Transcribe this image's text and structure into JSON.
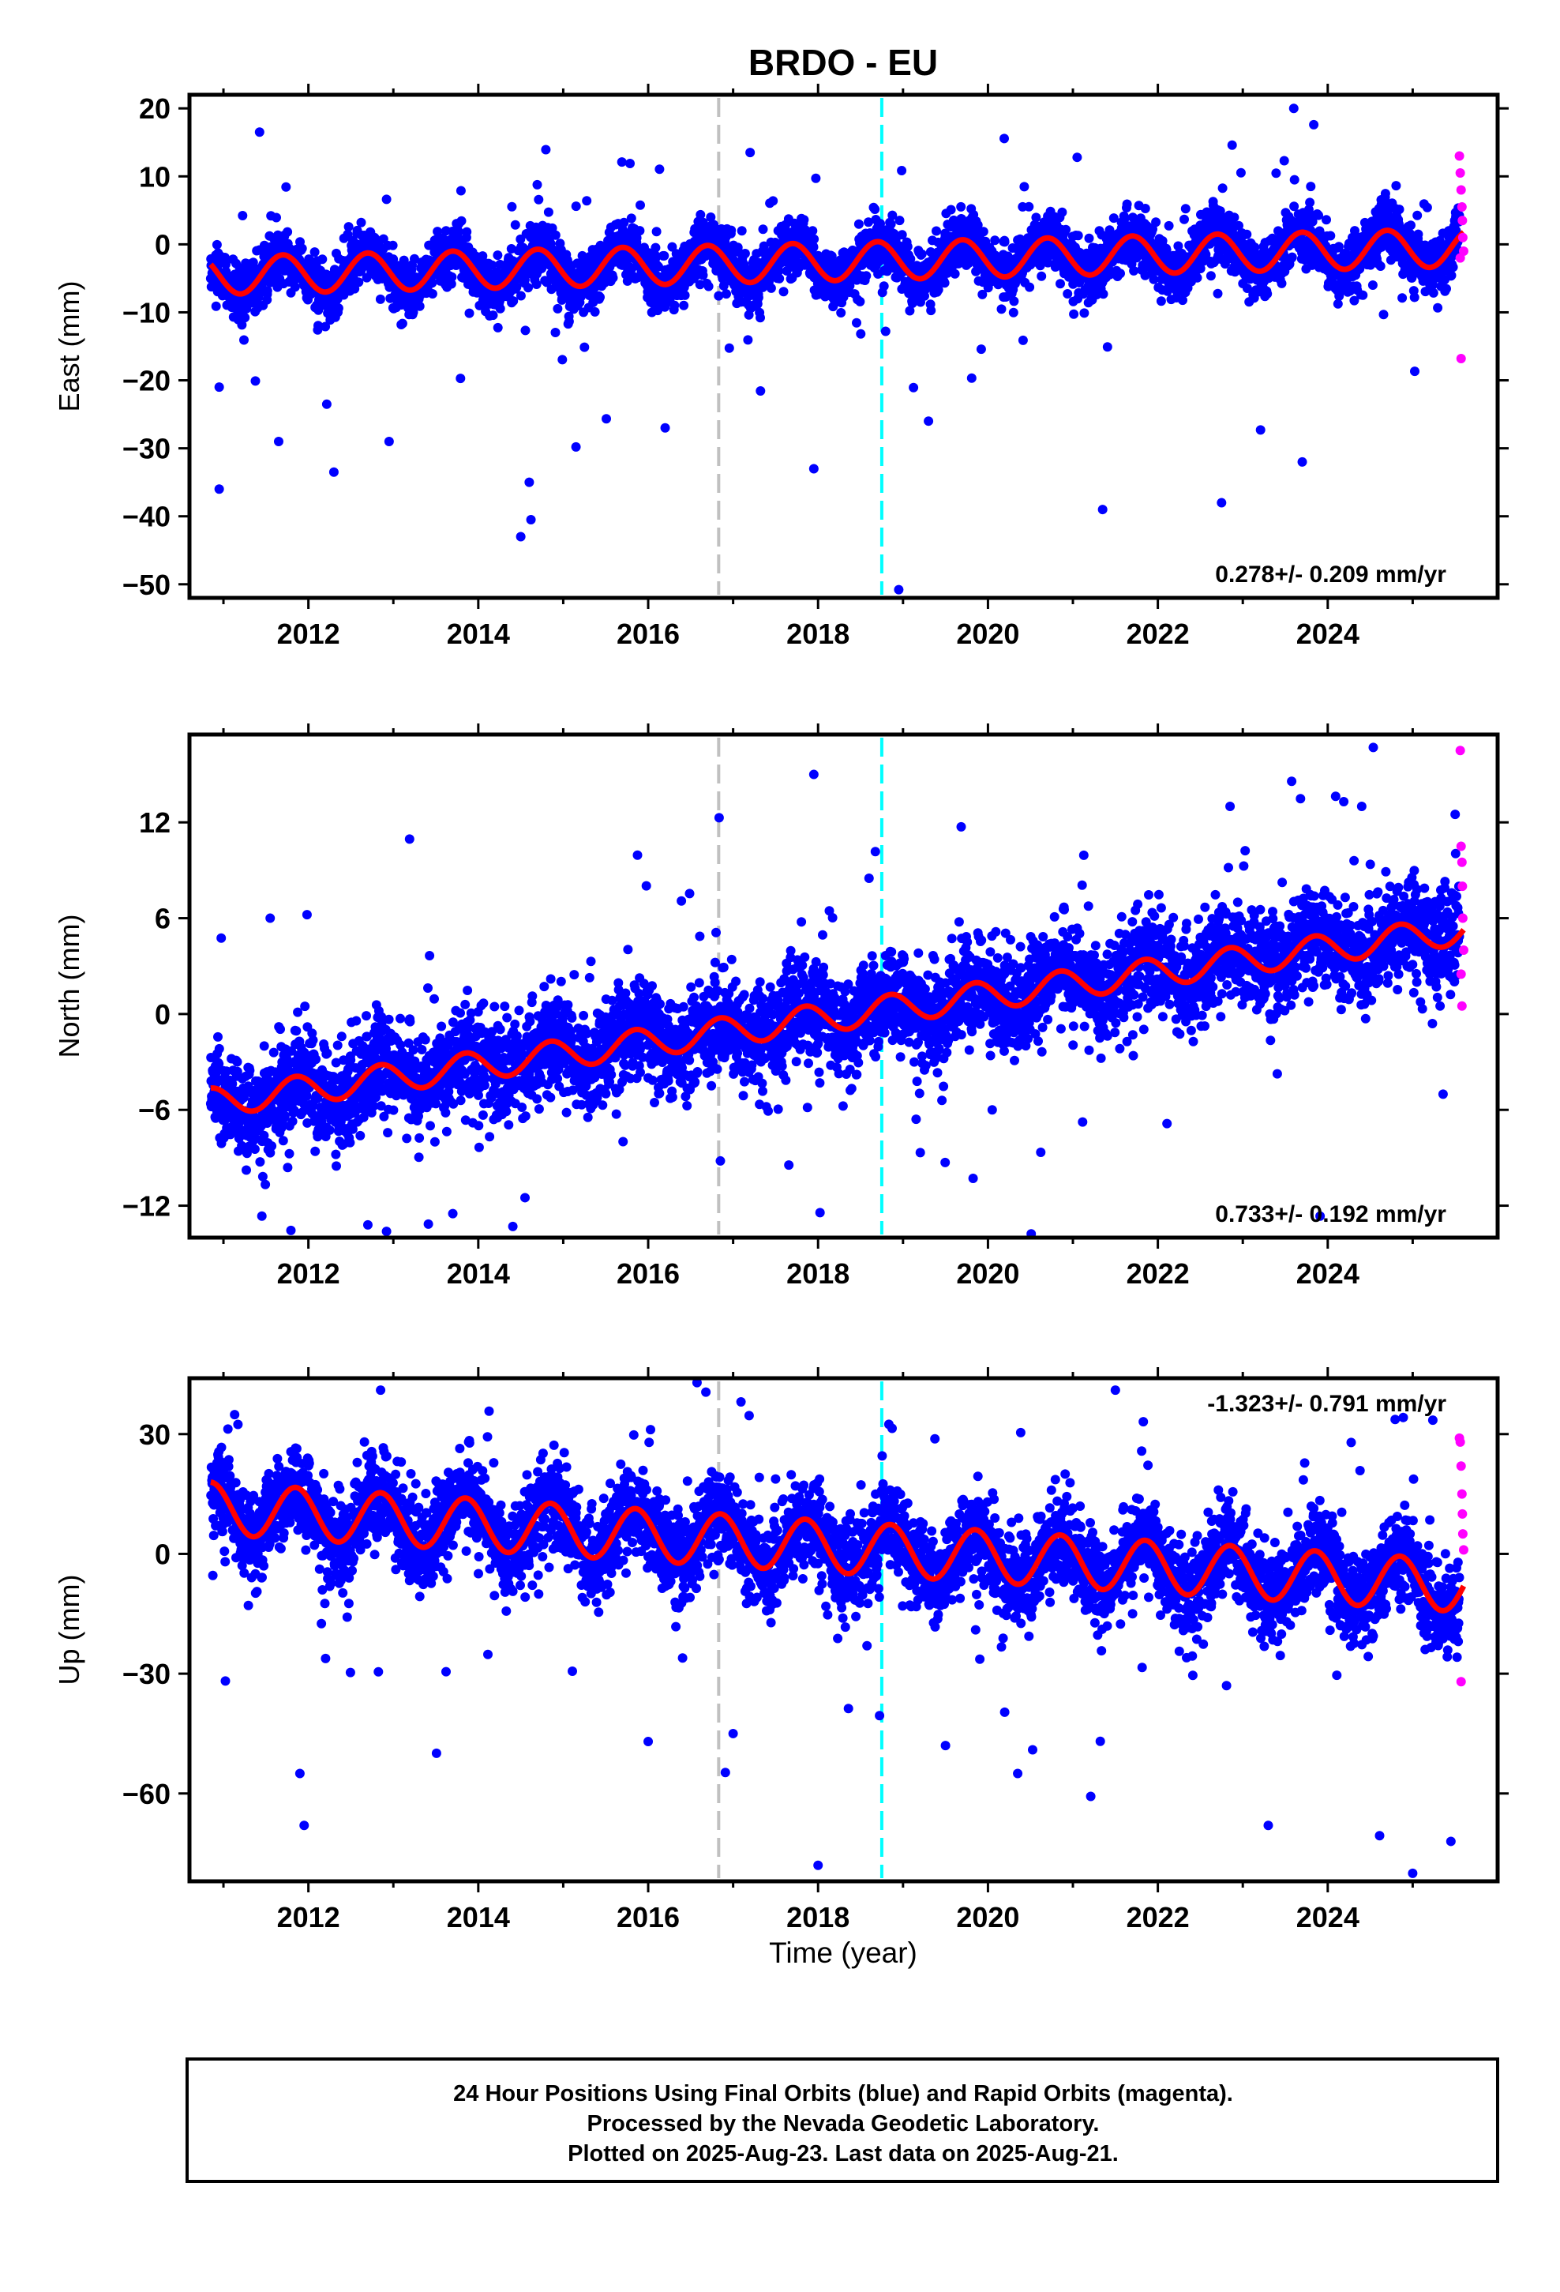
{
  "title": "BRDO - EU",
  "xlabel": "Time (year)",
  "footer_lines": [
    "24 Hour Positions Using Final Orbits (blue) and Rapid Orbits (magenta).",
    "Processed by the Nevada Geodetic Laboratory.",
    "Plotted on 2025-Aug-23. Last data on 2025-Aug-21."
  ],
  "colors": {
    "final_orbits": "#0000ff",
    "rapid_orbits": "#ff00ff",
    "model_fit": "#ff0000",
    "event_line_gray": "#c0c0c0",
    "event_line_cyan": "#00ffff"
  },
  "chart_data": [
    {
      "type": "scatter",
      "ylabel": "East (mm)",
      "xlim": [
        2010.6,
        2026.0
      ],
      "ylim": [
        -52,
        22
      ],
      "yticks": [
        20,
        10,
        0,
        -10,
        -20,
        -30,
        -40,
        -50
      ],
      "xticks": [
        2012,
        2014,
        2016,
        2018,
        2020,
        2022,
        2024
      ],
      "rate_text": "0.278+/- 0.209 mm/yr",
      "rate_position": "bottom-right",
      "vlines": [
        2016.83,
        2018.75
      ],
      "model": {
        "offset": -2.6,
        "trend": 0.278,
        "amplitude": 2.8,
        "phase": 0.45
      },
      "scatter_sd": 2.0,
      "outliers": [
        [
          2010.95,
          -36
        ],
        [
          2010.95,
          -21
        ],
        [
          2011.65,
          -29
        ],
        [
          2012.3,
          -33.5
        ],
        [
          2012.95,
          -29
        ],
        [
          2014.5,
          -43
        ],
        [
          2014.6,
          -35
        ],
        [
          2014.62,
          -40.5
        ],
        [
          2015.15,
          -29.8
        ],
        [
          2017.2,
          13.5
        ],
        [
          2017.95,
          -33
        ],
        [
          2018.95,
          -50.8
        ],
        [
          2021.05,
          12.8
        ],
        [
          2021.35,
          -39
        ],
        [
          2022.75,
          -38
        ],
        [
          2023.6,
          20
        ],
        [
          2023.7,
          -32
        ],
        [
          2016.2,
          -27
        ],
        [
          2019.3,
          -26
        ]
      ],
      "rapid": [
        [
          2025.55,
          13
        ],
        [
          2025.56,
          10.5
        ],
        [
          2025.57,
          8
        ],
        [
          2025.58,
          5.5
        ],
        [
          2025.585,
          3.5
        ],
        [
          2025.59,
          1
        ],
        [
          2025.6,
          -1
        ],
        [
          2025.56,
          -2
        ],
        [
          2025.57,
          -16.8
        ]
      ]
    },
    {
      "type": "scatter",
      "ylabel": "North (mm)",
      "xlim": [
        2010.6,
        2026.0
      ],
      "ylim": [
        -14,
        17.5
      ],
      "yticks": [
        12,
        6,
        0,
        -6,
        -12
      ],
      "xticks": [
        2012,
        2014,
        2016,
        2018,
        2020,
        2022,
        2024
      ],
      "rate_text": "0.733+/- 0.192 mm/yr",
      "rate_position": "bottom-right",
      "vlines": [
        2016.83,
        2018.75
      ],
      "model": {
        "offset": -0.3,
        "trend": 0.733,
        "amplitude": 0.9,
        "phase": 0.6
      },
      "scatter_sd": 1.5,
      "outliers": [
        [
          2011.55,
          6
        ],
        [
          2012.7,
          -13.2
        ],
        [
          2013.7,
          -12.5
        ],
        [
          2014.55,
          -11.5
        ],
        [
          2016.85,
          -9.2
        ],
        [
          2017.95,
          15
        ],
        [
          2018.6,
          8.5
        ],
        [
          2022.85,
          13
        ],
        [
          2024.4,
          13
        ],
        [
          2025.5,
          12.5
        ],
        [
          2020.05,
          -6
        ]
      ],
      "rapid": [
        [
          2025.56,
          16.5
        ],
        [
          2025.57,
          10.5
        ],
        [
          2025.58,
          9.5
        ],
        [
          2025.585,
          8
        ],
        [
          2025.59,
          6
        ],
        [
          2025.6,
          4
        ],
        [
          2025.57,
          2.5
        ],
        [
          2025.58,
          0.5
        ]
      ]
    },
    {
      "type": "scatter",
      "ylabel": "Up (mm)",
      "xlim": [
        2010.6,
        2026.0
      ],
      "ylim": [
        -82,
        44
      ],
      "yticks": [
        30,
        0,
        -30,
        -60
      ],
      "xticks": [
        2012,
        2014,
        2016,
        2018,
        2020,
        2022,
        2024
      ],
      "rate_text": "-1.323+/- 0.791 mm/yr",
      "rate_position": "top-right",
      "vlines": [
        2016.83,
        2018.75
      ],
      "model": {
        "offset": 2.0,
        "trend": -1.323,
        "amplitude": 6.5,
        "phase": 0.6
      },
      "scatter_sd": 5.5,
      "outliers": [
        [
          2011.95,
          -68
        ],
        [
          2011.9,
          -55
        ],
        [
          2012.85,
          41
        ],
        [
          2017.0,
          -45
        ],
        [
          2018.0,
          -78
        ],
        [
          2020.35,
          -55
        ],
        [
          2021.5,
          41
        ],
        [
          2023.3,
          -68
        ],
        [
          2025.0,
          -80
        ],
        [
          2025.45,
          -72
        ],
        [
          2016.0,
          -47
        ],
        [
          2019.5,
          -48
        ]
      ],
      "rapid": [
        [
          2025.55,
          29
        ],
        [
          2025.56,
          28
        ],
        [
          2025.57,
          22
        ],
        [
          2025.58,
          15
        ],
        [
          2025.585,
          10
        ],
        [
          2025.59,
          5
        ],
        [
          2025.6,
          1
        ],
        [
          2025.57,
          -32
        ]
      ]
    }
  ]
}
